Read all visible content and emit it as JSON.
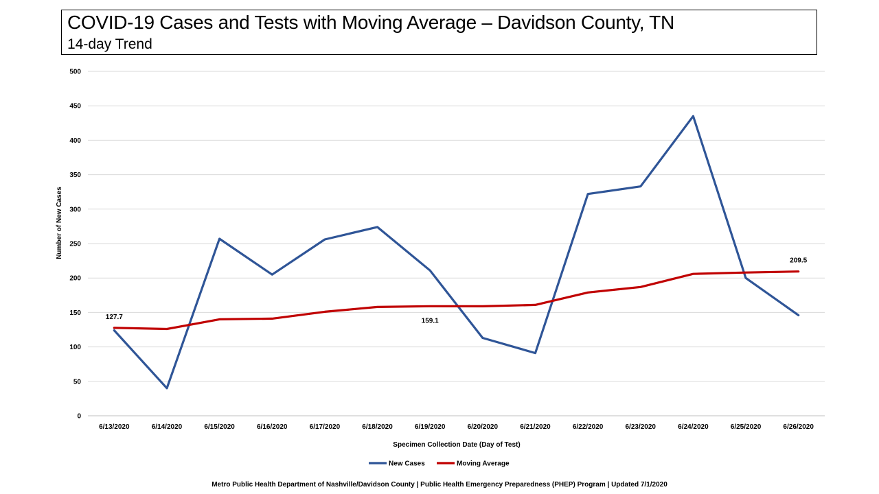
{
  "header": {
    "title": "COVID-19 Cases and Tests with Moving Average – Davidson County, TN",
    "subtitle": "14-day Trend"
  },
  "chart_data": {
    "type": "line",
    "title": "COVID-19 Cases and Tests with Moving Average – Davidson County, TN",
    "subtitle": "14-day Trend",
    "xlabel": "Specimen Collection Date (Day of Test)",
    "ylabel": "Number of New Cases",
    "ylim": [
      0,
      500
    ],
    "yticks": [
      0,
      50,
      100,
      150,
      200,
      250,
      300,
      350,
      400,
      450,
      500
    ],
    "grid": true,
    "legend_position": "bottom",
    "categories": [
      "6/13/2020",
      "6/14/2020",
      "6/15/2020",
      "6/16/2020",
      "6/17/2020",
      "6/18/2020",
      "6/19/2020",
      "6/20/2020",
      "6/21/2020",
      "6/22/2020",
      "6/23/2020",
      "6/24/2020",
      "6/25/2020",
      "6/26/2020"
    ],
    "series": [
      {
        "name": "New Cases",
        "color": "#2F5597",
        "values": [
          124,
          40,
          257,
          205,
          256,
          274,
          211,
          113,
          91,
          322,
          333,
          435,
          200,
          146
        ]
      },
      {
        "name": "Moving Average",
        "color": "#C00000",
        "values": [
          127.7,
          126,
          140,
          141,
          151,
          158,
          159.1,
          159,
          161,
          179,
          187,
          206,
          208,
          209.5
        ]
      }
    ],
    "annotations": [
      {
        "series": 1,
        "index": 0,
        "text": "127.7"
      },
      {
        "series": 1,
        "index": 6,
        "text": "159.1"
      },
      {
        "series": 1,
        "index": 13,
        "text": "209.5"
      }
    ]
  },
  "footer": {
    "text": "Metro Public Health Department of Nashville/Davidson County     |     Public Health Emergency Preparedness (PHEP) Program     |     Updated 7/1/2020"
  }
}
